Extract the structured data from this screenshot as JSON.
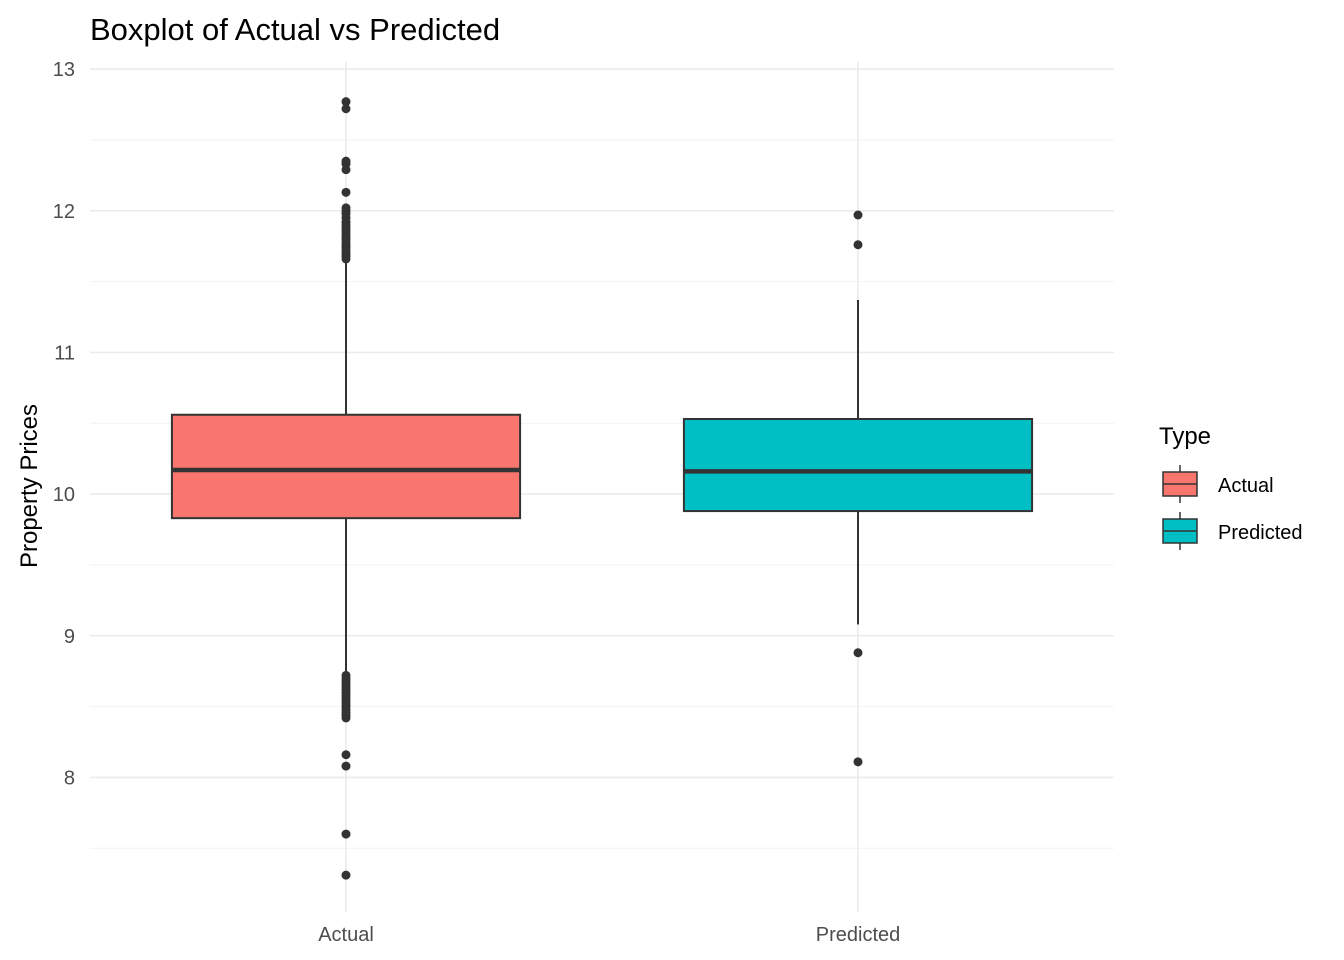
{
  "chart_data": {
    "type": "boxplot",
    "title": "Boxplot of Actual vs Predicted",
    "xlabel": "",
    "ylabel": "Property Prices",
    "ylim": [
      7.05,
      13.05
    ],
    "yticks": [
      8,
      9,
      10,
      11,
      12,
      13
    ],
    "grid": true,
    "legend": {
      "title": "Type",
      "position": "right",
      "entries": [
        "Actual",
        "Predicted"
      ]
    },
    "categories": [
      "Actual",
      "Predicted"
    ],
    "series": [
      {
        "name": "Actual",
        "color": "#F8766D",
        "q1": 9.83,
        "median": 10.17,
        "q3": 10.56,
        "whisker_low": 8.75,
        "whisker_high": 11.63,
        "outliers": [
          12.77,
          12.72,
          12.35,
          12.33,
          12.29,
          12.13,
          12.02,
          12.0,
          11.98,
          11.95,
          11.92,
          11.9,
          11.88,
          11.86,
          11.84,
          11.82,
          11.8,
          11.78,
          11.76,
          11.74,
          11.72,
          11.7,
          11.68,
          11.66,
          8.72,
          8.7,
          8.68,
          8.66,
          8.64,
          8.62,
          8.6,
          8.58,
          8.56,
          8.54,
          8.52,
          8.5,
          8.48,
          8.46,
          8.44,
          8.42,
          8.16,
          8.08,
          7.6,
          7.31
        ]
      },
      {
        "name": "Predicted",
        "color": "#00BFC4",
        "q1": 9.88,
        "median": 10.16,
        "q3": 10.53,
        "whisker_low": 9.08,
        "whisker_high": 11.37,
        "outliers": [
          11.97,
          11.76,
          8.88,
          8.11
        ]
      }
    ]
  }
}
